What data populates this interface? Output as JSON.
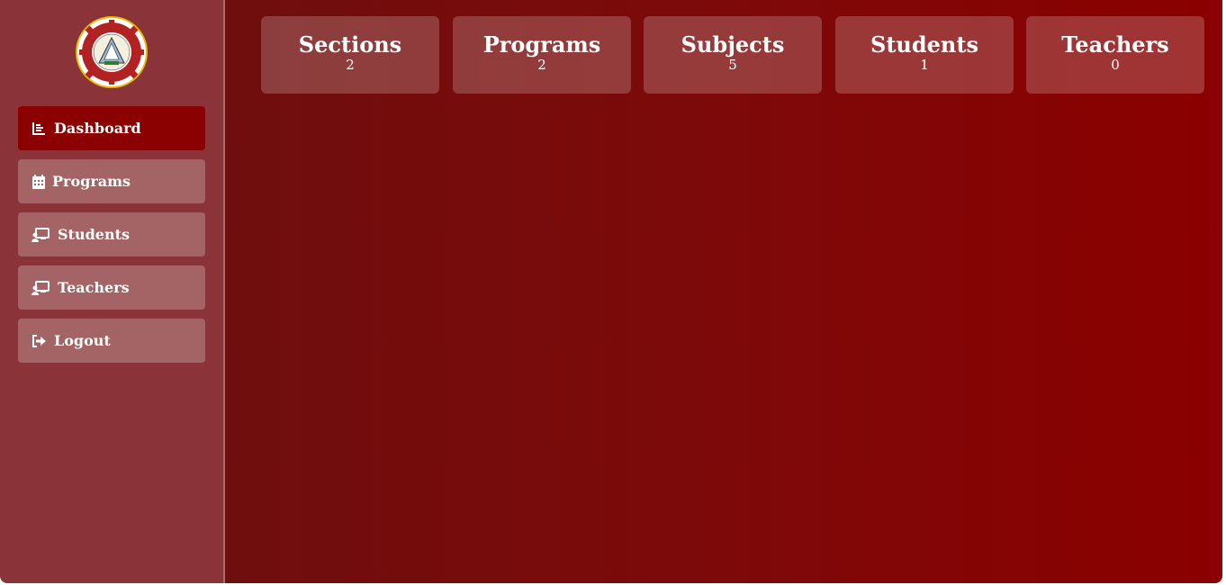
{
  "sidebar": {
    "logo_icon": "school-seal-logo",
    "items": [
      {
        "label": "Dashboard",
        "icon": "chart-icon",
        "active": true
      },
      {
        "label": "Programs",
        "icon": "calendar-icon",
        "active": false
      },
      {
        "label": "Students",
        "icon": "chalkboard-user-icon",
        "active": false
      },
      {
        "label": "Teachers",
        "icon": "chalkboard-user-icon",
        "active": false
      },
      {
        "label": "Logout",
        "icon": "logout-icon",
        "active": false
      }
    ]
  },
  "main": {
    "cards": [
      {
        "title": "Sections",
        "count": "2"
      },
      {
        "title": "Programs",
        "count": "2"
      },
      {
        "title": "Subjects",
        "count": "5"
      },
      {
        "title": "Students",
        "count": "1"
      },
      {
        "title": "Teachers",
        "count": "0"
      }
    ]
  },
  "colors": {
    "sidebar_bg": "#8a3338",
    "nav_item_bg": "#a46365",
    "nav_item_active_bg": "#8b0000",
    "main_gradient_start": "#6f0e0e",
    "main_gradient_end": "#8b0000"
  }
}
